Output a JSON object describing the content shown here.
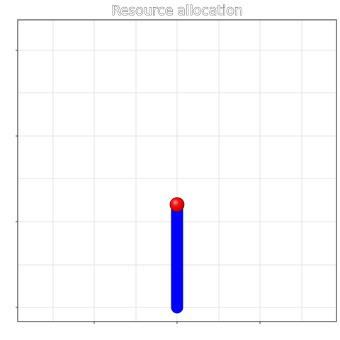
{
  "chart_data": {
    "type": "line",
    "title": "Resource allocation",
    "xlabel": "",
    "ylabel": "",
    "grid": true,
    "legend": "none",
    "xlim": [
      0,
      1
    ],
    "ylim": [
      0,
      1
    ],
    "series": [
      {
        "x": [
          0.5,
          0.5
        ],
        "y": [
          0.0,
          0.6
        ],
        "color": "#0000ff",
        "end_marker": {
          "x": 0.5,
          "y": 0.6,
          "color": "#ff0000"
        }
      }
    ]
  }
}
